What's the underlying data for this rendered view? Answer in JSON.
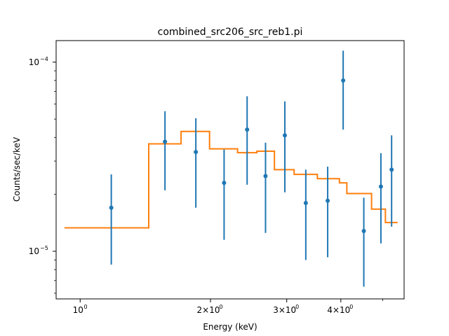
{
  "chart_data": {
    "type": "scatter",
    "title": "combined_src206_src_reb1.pi",
    "xlabel": "Energy (keV)",
    "ylabel": "Counts/sec/keV",
    "xscale": "log",
    "yscale": "log",
    "xlim": [
      0.88,
      5.6
    ],
    "ylim": [
      5.6e-06,
      0.00013
    ],
    "grid": false,
    "x_ticks": [
      {
        "value": 1,
        "label": "10"
      },
      {
        "value": 2,
        "label": "2×10"
      },
      {
        "value": 3,
        "label": "3×10"
      },
      {
        "value": 4,
        "label": "4×10"
      }
    ],
    "x_ticks_exponent": "0",
    "y_ticks": [
      {
        "value": 1e-05,
        "label": "10",
        "exponent": "−5"
      },
      {
        "value": 0.0001,
        "label": "10",
        "exponent": "−4"
      }
    ],
    "colors": {
      "data": "#1f77b4",
      "model": "#ff7f0e"
    },
    "series": [
      {
        "type": "errorbar",
        "x": [
          1.18,
          1.57,
          1.85,
          2.15,
          2.43,
          2.68,
          2.97,
          3.32,
          3.73,
          4.05,
          4.52,
          4.95,
          5.24
        ],
        "y": [
          1.7e-05,
          3.8e-05,
          3.35e-05,
          2.3e-05,
          4.4e-05,
          2.5e-05,
          4.1e-05,
          1.8e-05,
          1.85e-05,
          8e-05,
          1.28e-05,
          2.2e-05,
          2.7e-05
        ],
        "ylow": [
          8.5e-06,
          2.1e-05,
          1.7e-05,
          1.15e-05,
          2.25e-05,
          1.25e-05,
          2.05e-05,
          9e-06,
          9.3e-06,
          4.4e-05,
          6.5e-06,
          1.1e-05,
          1.35e-05
        ],
        "yhigh": [
          2.55e-05,
          5.5e-05,
          5.05e-05,
          3.45e-05,
          6.6e-05,
          3.75e-05,
          6.2e-05,
          2.7e-05,
          2.8e-05,
          0.000115,
          1.92e-05,
          3.3e-05,
          4.1e-05
        ]
      },
      {
        "type": "step",
        "edges": [
          0.92,
          1.44,
          1.71,
          1.99,
          2.31,
          2.56,
          2.81,
          3.12,
          3.53,
          3.97,
          4.13,
          4.71,
          5.07,
          5.41
        ],
        "values": [
          1.33e-05,
          3.7e-05,
          4.3e-05,
          3.48e-05,
          3.32e-05,
          3.38e-05,
          2.7e-05,
          2.55e-05,
          2.42e-05,
          2.3e-05,
          2.02e-05,
          1.67e-05,
          1.42e-05
        ]
      }
    ]
  }
}
